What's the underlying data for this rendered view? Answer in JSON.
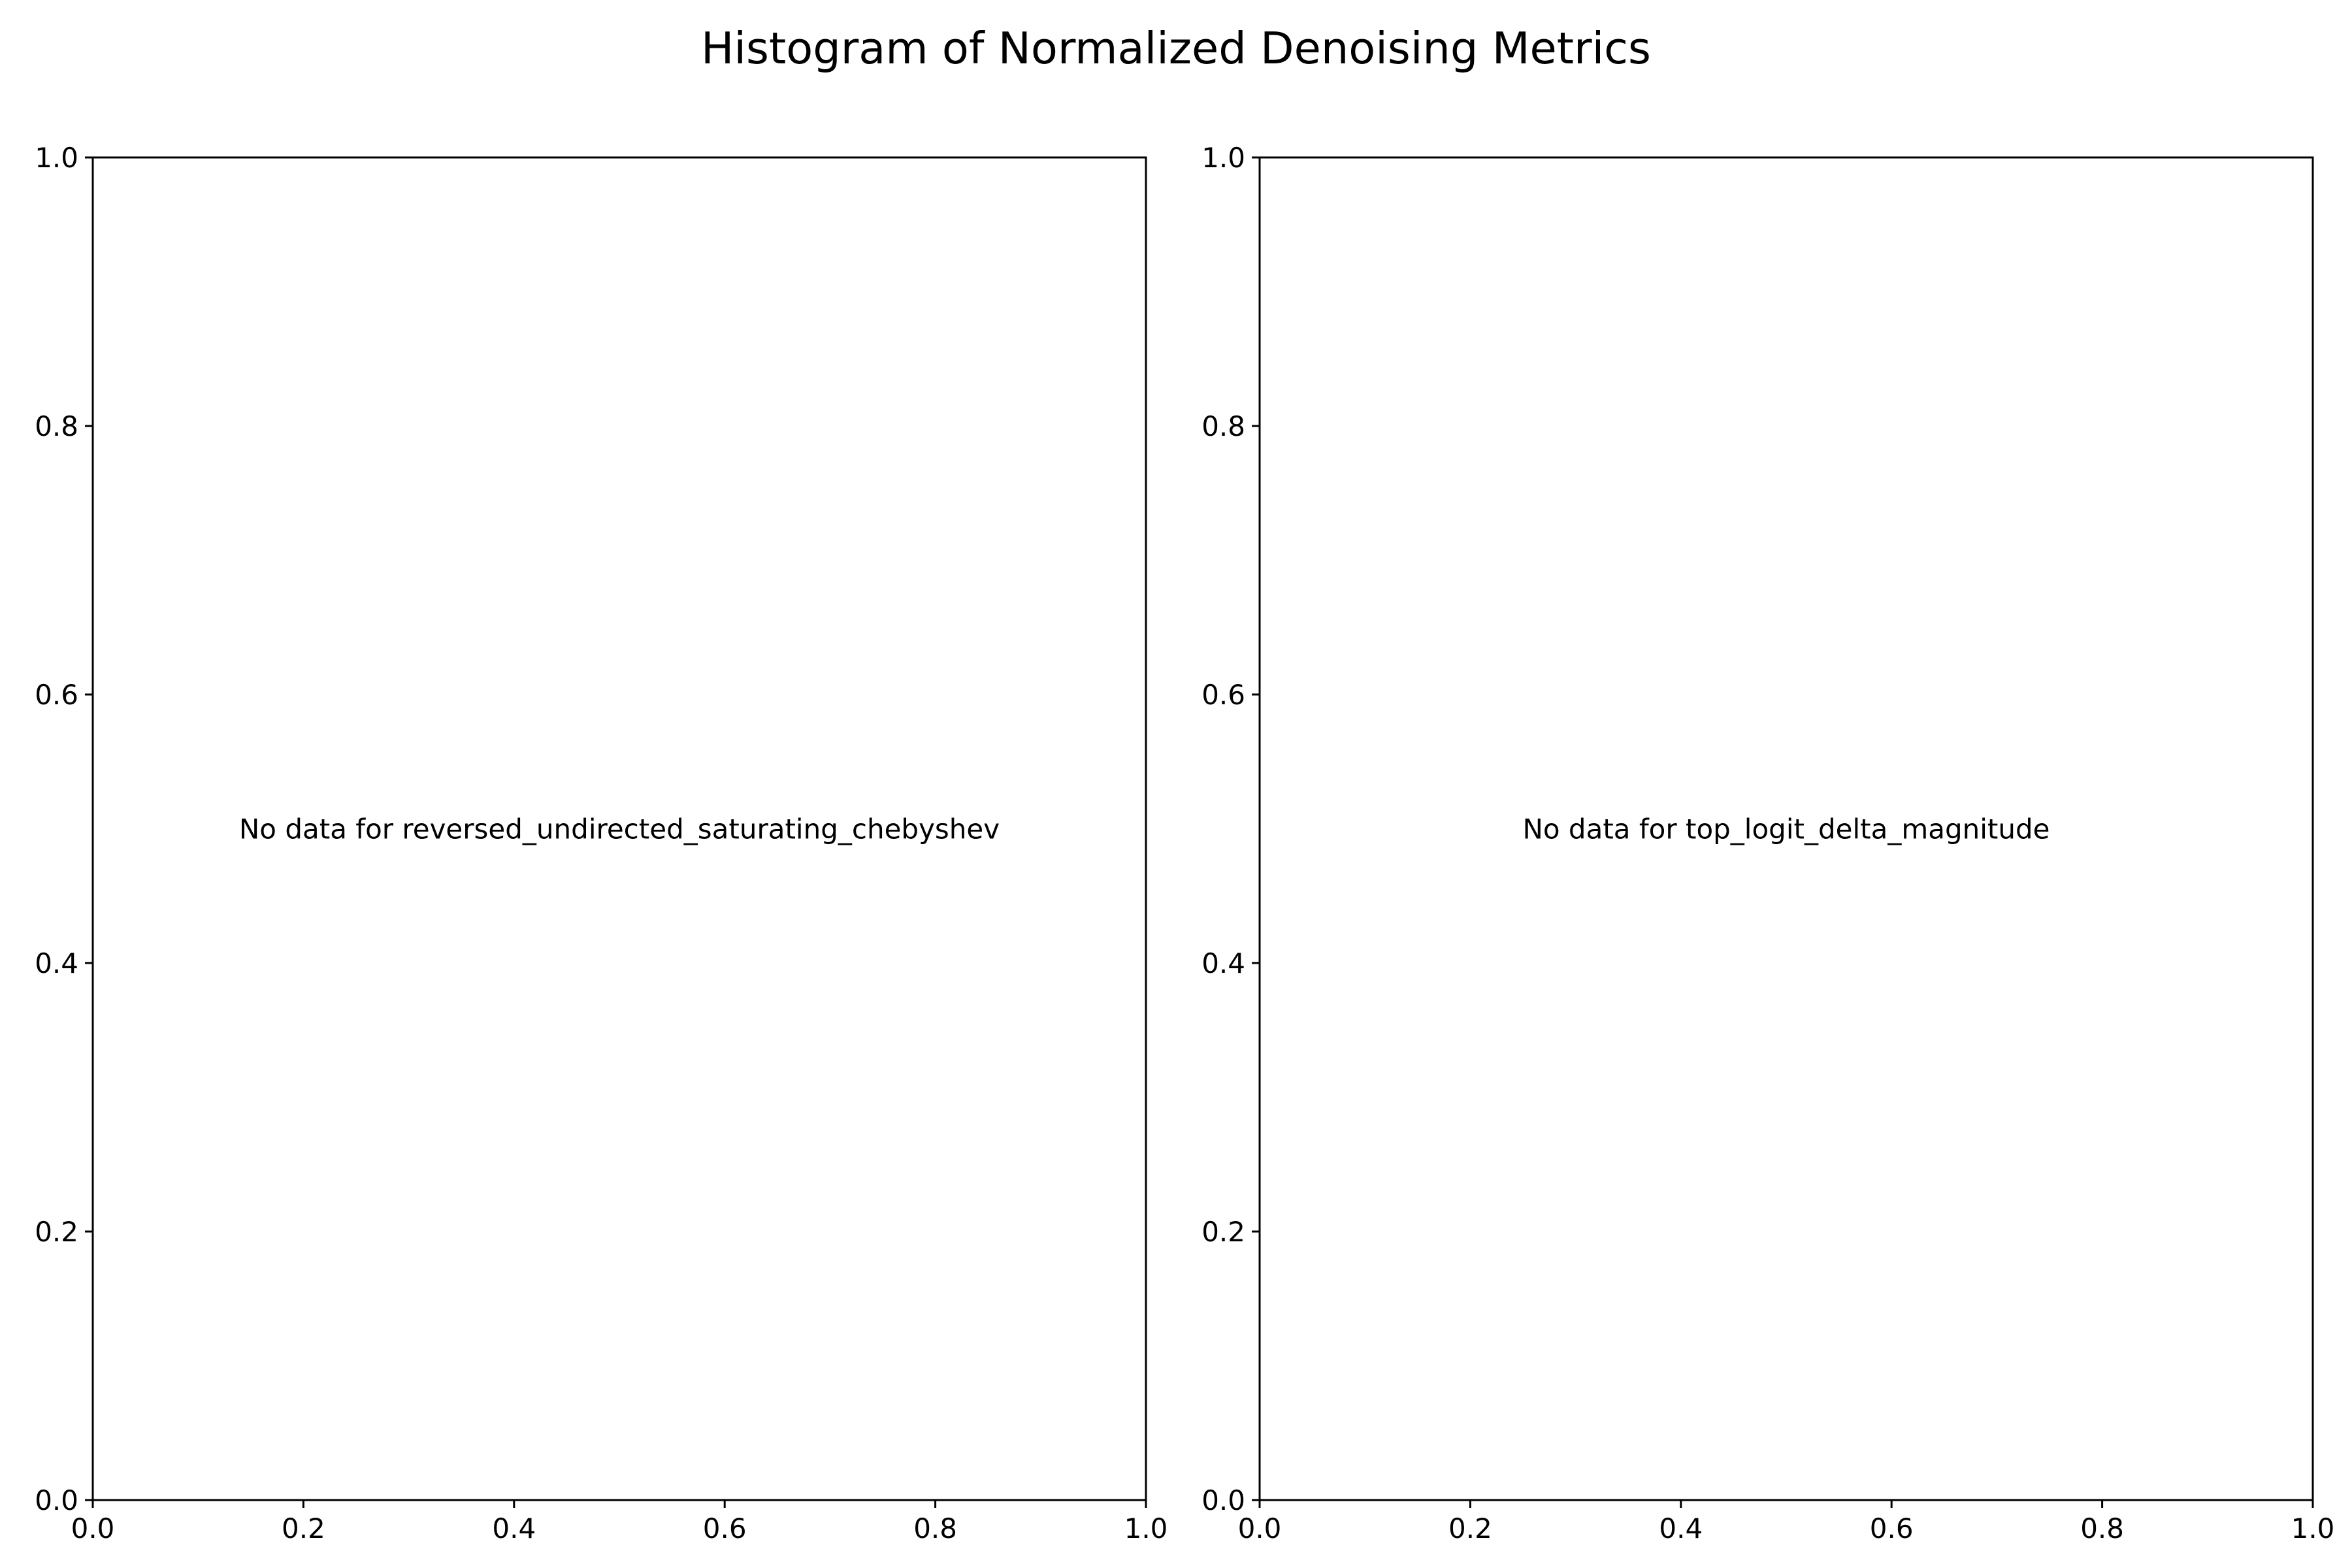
{
  "title": "Histogram of Normalized Denoising Metrics",
  "chart_data": [
    {
      "type": "bar",
      "title": "",
      "xlabel": "",
      "ylabel": "",
      "xlim": [
        0.0,
        1.0
      ],
      "ylim": [
        0.0,
        1.0
      ],
      "x_ticks": [
        "0.0",
        "0.2",
        "0.4",
        "0.6",
        "0.8",
        "1.0"
      ],
      "y_ticks": [
        "0.0",
        "0.2",
        "0.4",
        "0.6",
        "0.8",
        "1.0"
      ],
      "values": [],
      "message": "No data for reversed_undirected_saturating_chebyshev",
      "grid": false
    },
    {
      "type": "bar",
      "title": "",
      "xlabel": "",
      "ylabel": "",
      "xlim": [
        0.0,
        1.0
      ],
      "ylim": [
        0.0,
        1.0
      ],
      "x_ticks": [
        "0.0",
        "0.2",
        "0.4",
        "0.6",
        "0.8",
        "1.0"
      ],
      "y_ticks": [
        "0.0",
        "0.2",
        "0.4",
        "0.6",
        "0.8",
        "1.0"
      ],
      "values": [],
      "message": "No data for top_logit_delta_magnitude",
      "grid": false
    }
  ]
}
